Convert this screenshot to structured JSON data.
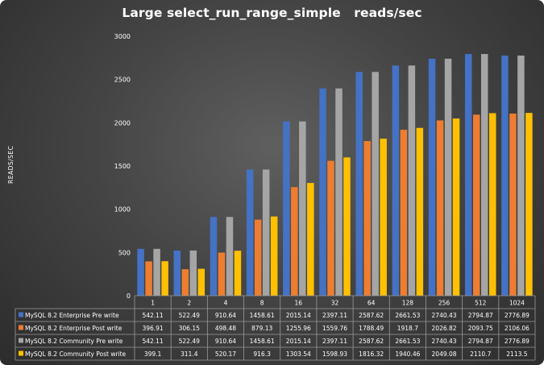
{
  "chart_data": {
    "type": "bar",
    "title": "Large select_run_range_simple   reads/sec",
    "ylabel": "READS/SEC",
    "xlabel": "",
    "ylim": [
      0,
      3000
    ],
    "yticks": [
      0,
      500,
      1000,
      1500,
      2000,
      2500,
      3000
    ],
    "grid": false,
    "legend": "data-table",
    "categories": [
      "1",
      "2",
      "4",
      "8",
      "16",
      "32",
      "64",
      "128",
      "256",
      "512",
      "1024"
    ],
    "series": [
      {
        "name": "MySQL 8.2 Enterprise Pre write",
        "color": "#4472c4",
        "values": [
          542.11,
          522.49,
          910.64,
          1458.61,
          2015.14,
          2397.11,
          2587.62,
          2661.53,
          2740.43,
          2794.87,
          2776.89
        ]
      },
      {
        "name": "MySQL 8.2 Enterprise Post write",
        "color": "#ed7d31",
        "values": [
          396.91,
          306.15,
          498.48,
          879.13,
          1255.96,
          1559.76,
          1788.49,
          1918.7,
          2026.82,
          2093.75,
          2106.06
        ]
      },
      {
        "name": "MySQL 8.2 Community Pre write",
        "color": "#a5a5a5",
        "values": [
          542.11,
          522.49,
          910.64,
          1458.61,
          2015.14,
          2397.11,
          2587.62,
          2661.53,
          2740.43,
          2794.87,
          2776.89
        ]
      },
      {
        "name": "MySQL 8.2 Community Post write",
        "color": "#ffc000",
        "values": [
          399.1,
          311.4,
          520.17,
          916.3,
          1303.54,
          1598.93,
          1816.32,
          1940.46,
          2049.08,
          2110.7,
          2113.5
        ]
      }
    ]
  }
}
